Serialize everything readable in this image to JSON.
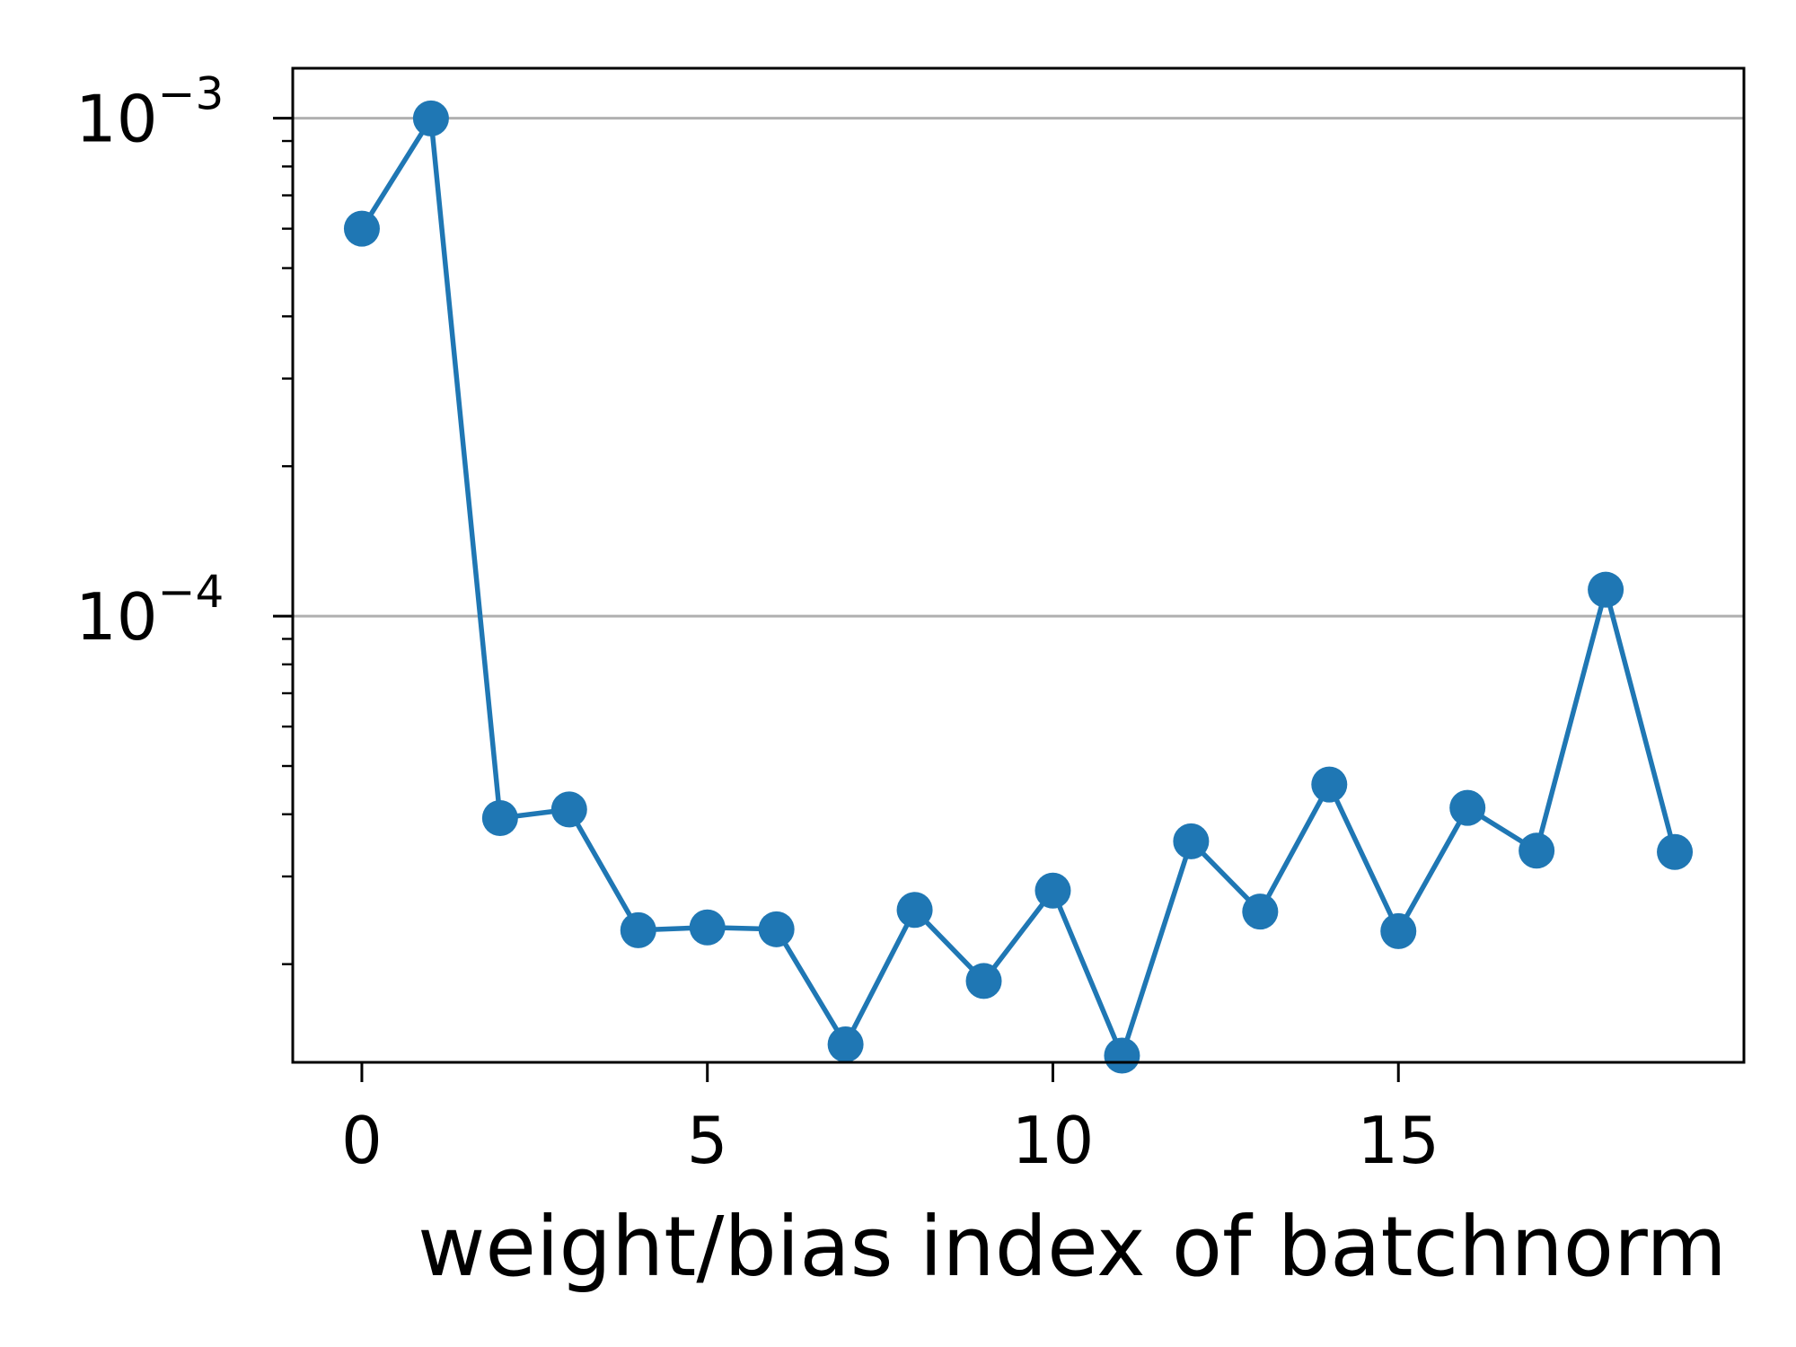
{
  "chart_data": {
    "type": "line",
    "title": "",
    "xlabel": "weight/bias index of batchnorm",
    "ylabel": "",
    "x_scale": "linear",
    "y_scale": "log",
    "xlim": [
      -1,
      20
    ],
    "ylim": [
      1.27e-05,
      0.00126
    ],
    "x_ticks": [
      0,
      5,
      10,
      15
    ],
    "x_tick_labels": [
      "0",
      "5",
      "10",
      "15"
    ],
    "y_ticks": [
      0.001,
      0.0001
    ],
    "y_tick_labels": [
      {
        "base": "10",
        "exp": "−3"
      },
      {
        "base": "10",
        "exp": "−4"
      }
    ],
    "grid": "horizontal at major y ticks",
    "legend": "none",
    "colors": {
      "series": "#1f77b4",
      "grid": "#b0b0b0",
      "axes": "#000000"
    },
    "series": [
      {
        "marker": "circle",
        "x": [
          0,
          1,
          2,
          3,
          4,
          5,
          6,
          7,
          8,
          9,
          10,
          11,
          12,
          13,
          14,
          15,
          16,
          17,
          18,
          19
        ],
        "y": [
          0.0006,
          0.000999,
          3.93e-05,
          4.09e-05,
          2.34e-05,
          2.37e-05,
          2.35e-05,
          1.38e-05,
          2.57e-05,
          1.85e-05,
          2.81e-05,
          1.31e-05,
          3.53e-05,
          2.55e-05,
          4.59e-05,
          2.33e-05,
          4.12e-05,
          3.38e-05,
          0.000113,
          3.36e-05
        ]
      }
    ]
  }
}
